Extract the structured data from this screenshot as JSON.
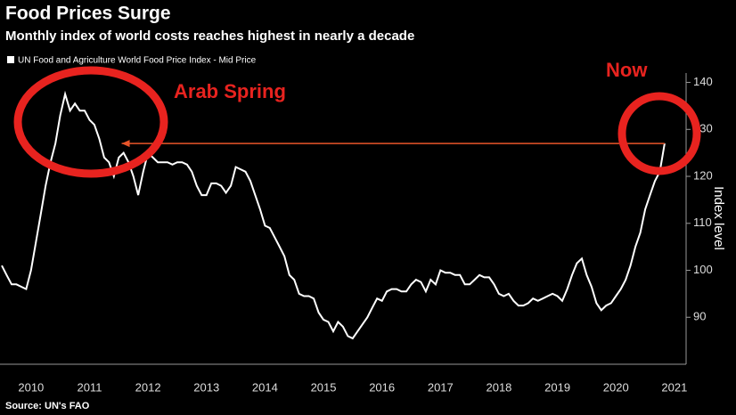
{
  "chart_data": {
    "type": "line",
    "title": "Food Prices Surge",
    "subtitle": "Monthly index of world costs reaches highest in nearly a decade",
    "y_label": "Index level",
    "source": "Source: UN's FAO",
    "xlim": [
      2010,
      2021.7
    ],
    "ylim": [
      80,
      142
    ],
    "yticks": [
      90,
      100,
      110,
      120,
      130,
      140
    ],
    "xticks": [
      {
        "value": 2010.5,
        "label": "2010"
      },
      {
        "value": 2011.5,
        "label": "2011"
      },
      {
        "value": 2012.5,
        "label": "2012"
      },
      {
        "value": 2013.5,
        "label": "2013"
      },
      {
        "value": 2014.5,
        "label": "2014"
      },
      {
        "value": 2015.5,
        "label": "2015"
      },
      {
        "value": 2016.5,
        "label": "2016"
      },
      {
        "value": 2017.5,
        "label": "2017"
      },
      {
        "value": 2018.5,
        "label": "2018"
      },
      {
        "value": 2019.5,
        "label": "2019"
      },
      {
        "value": 2020.5,
        "label": "2020"
      },
      {
        "value": 2021.5,
        "label": "2021"
      }
    ],
    "x": [
      2010,
      2010.083,
      2010.167,
      2010.25,
      2010.333,
      2010.417,
      2010.5,
      2010.583,
      2010.667,
      2010.75,
      2010.833,
      2010.917,
      2011,
      2011.083,
      2011.167,
      2011.25,
      2011.333,
      2011.417,
      2011.5,
      2011.583,
      2011.667,
      2011.75,
      2011.833,
      2011.917,
      2012,
      2012.083,
      2012.167,
      2012.25,
      2012.333,
      2012.417,
      2012.5,
      2012.583,
      2012.667,
      2012.75,
      2012.833,
      2012.917,
      2013,
      2013.083,
      2013.167,
      2013.25,
      2013.333,
      2013.417,
      2013.5,
      2013.583,
      2013.667,
      2013.75,
      2013.833,
      2013.917,
      2014,
      2014.083,
      2014.167,
      2014.25,
      2014.333,
      2014.417,
      2014.5,
      2014.583,
      2014.667,
      2014.75,
      2014.833,
      2014.917,
      2015,
      2015.083,
      2015.167,
      2015.25,
      2015.333,
      2015.417,
      2015.5,
      2015.583,
      2015.667,
      2015.75,
      2015.833,
      2015.917,
      2016,
      2016.083,
      2016.167,
      2016.25,
      2016.333,
      2016.417,
      2016.5,
      2016.583,
      2016.667,
      2016.75,
      2016.833,
      2016.917,
      2017,
      2017.083,
      2017.167,
      2017.25,
      2017.333,
      2017.417,
      2017.5,
      2017.583,
      2017.667,
      2017.75,
      2017.833,
      2017.917,
      2018,
      2018.083,
      2018.167,
      2018.25,
      2018.333,
      2018.417,
      2018.5,
      2018.583,
      2018.667,
      2018.75,
      2018.833,
      2018.917,
      2019,
      2019.083,
      2019.167,
      2019.25,
      2019.333,
      2019.417,
      2019.5,
      2019.583,
      2019.667,
      2019.75,
      2019.833,
      2019.917,
      2020,
      2020.083,
      2020.167,
      2020.25,
      2020.333,
      2020.417,
      2020.5,
      2020.583,
      2020.667,
      2020.75,
      2020.833,
      2020.917,
      2021,
      2021.083,
      2021.167,
      2021.25,
      2021.333
    ],
    "series": [
      {
        "name": "UN Food and Agriculture World Food Price Index - Mid Price",
        "color": "#ffffff",
        "values": [
          101,
          99,
          97,
          97,
          96.5,
          96,
          100,
          106,
          112,
          118,
          123,
          127,
          133,
          137.5,
          134,
          135.5,
          134,
          134,
          132,
          131,
          128,
          124,
          123,
          120,
          124,
          125,
          123,
          120,
          116,
          121,
          125,
          124,
          123,
          123,
          123,
          122.5,
          123,
          123,
          122.5,
          121,
          118,
          116,
          116,
          118.5,
          118.5,
          118,
          116.5,
          118,
          122,
          121.5,
          121,
          119,
          116,
          113,
          109.5,
          109,
          107,
          105,
          103,
          99,
          98,
          95,
          94.5,
          94.5,
          94,
          91,
          89.5,
          89,
          87,
          89,
          88,
          86,
          85.5,
          87,
          88.5,
          90,
          92,
          94,
          93.5,
          95.5,
          96,
          96,
          95.5,
          95.5,
          97,
          98,
          97.5,
          95.5,
          98,
          97,
          100,
          99.5,
          99.5,
          99,
          99,
          97,
          97,
          98,
          99,
          98.5,
          98.5,
          97,
          95,
          94.5,
          95,
          93.5,
          92.5,
          92.5,
          93,
          94,
          93.5,
          94,
          94.5,
          95,
          94.5,
          93.5,
          96,
          99,
          101.5,
          102.5,
          99,
          96.5,
          93,
          91.5,
          92.5,
          93,
          94.5,
          96,
          98,
          101,
          105,
          108,
          113,
          116,
          119,
          121,
          127
        ]
      }
    ],
    "arrow": {
      "from_x": 2021.333,
      "to_x": 2012.05,
      "y": 127,
      "color": "#e8552a"
    },
    "annotations": [
      {
        "text": "Arab Spring",
        "color": "#e8231f"
      },
      {
        "text": "Now",
        "color": "#e8231f"
      }
    ]
  }
}
